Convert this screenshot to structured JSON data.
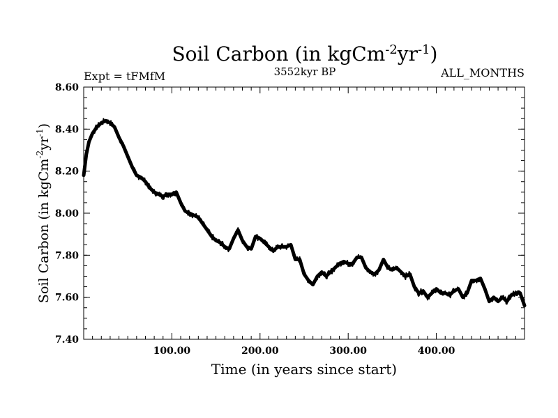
{
  "chart_data": {
    "type": "line",
    "title_main": "Soil Carbon (in kgCm",
    "title_sup1": "-2",
    "title_mid": "yr",
    "title_sup2": "-1",
    "title_end": ")",
    "left_label": "Expt = tFMfM",
    "center_label": "3552kyr BP",
    "right_label": "ALL_MONTHS",
    "xlabel": "Time (in years since start)",
    "ylabel_main": "Soil Carbon (in kgCm",
    "ylabel_sup1": "-2",
    "ylabel_mid": "yr",
    "ylabel_sup2": "-1",
    "ylabel_end": ")",
    "xlim": [
      0,
      500
    ],
    "ylim": [
      7.4,
      8.6
    ],
    "xticks": [
      100,
      200,
      300,
      400
    ],
    "xtick_labels": [
      "100.00",
      "200.00",
      "300.00",
      "400.00"
    ],
    "yticks": [
      7.4,
      7.6,
      7.8,
      8.0,
      8.2,
      8.4,
      8.6
    ],
    "ytick_labels": [
      "7.40",
      "7.60",
      "7.80",
      "8.00",
      "8.20",
      "8.40",
      "8.60"
    ],
    "grid": false,
    "series": [
      {
        "name": "Soil Carbon",
        "color": "#000000",
        "x": [
          0,
          3,
          6,
          10,
          15,
          20,
          25,
          30,
          35,
          40,
          45,
          50,
          55,
          60,
          65,
          70,
          75,
          80,
          85,
          90,
          95,
          100,
          105,
          110,
          115,
          120,
          125,
          130,
          135,
          140,
          145,
          150,
          155,
          160,
          165,
          170,
          175,
          180,
          185,
          190,
          195,
          200,
          205,
          210,
          215,
          220,
          225,
          230,
          235,
          240,
          245,
          250,
          255,
          260,
          265,
          270,
          275,
          280,
          285,
          290,
          295,
          300,
          305,
          310,
          315,
          320,
          325,
          330,
          335,
          340,
          345,
          350,
          355,
          360,
          365,
          370,
          375,
          380,
          385,
          390,
          395,
          400,
          405,
          410,
          415,
          420,
          425,
          430,
          435,
          440,
          445,
          450,
          455,
          460,
          465,
          470,
          475,
          480,
          485,
          490,
          495,
          500
        ],
        "values": [
          8.18,
          8.28,
          8.34,
          8.38,
          8.41,
          8.43,
          8.44,
          8.43,
          8.41,
          8.36,
          8.32,
          8.27,
          8.22,
          8.18,
          8.17,
          8.15,
          8.12,
          8.1,
          8.09,
          8.08,
          8.09,
          8.09,
          8.1,
          8.05,
          8.01,
          8.0,
          7.99,
          7.98,
          7.95,
          7.92,
          7.89,
          7.87,
          7.86,
          7.84,
          7.83,
          7.88,
          7.92,
          7.87,
          7.84,
          7.83,
          7.89,
          7.88,
          7.86,
          7.84,
          7.82,
          7.84,
          7.84,
          7.84,
          7.85,
          7.78,
          7.78,
          7.71,
          7.68,
          7.66,
          7.7,
          7.72,
          7.7,
          7.72,
          7.74,
          7.76,
          7.77,
          7.76,
          7.76,
          7.79,
          7.79,
          7.74,
          7.72,
          7.71,
          7.73,
          7.78,
          7.74,
          7.73,
          7.74,
          7.72,
          7.7,
          7.71,
          7.65,
          7.62,
          7.63,
          7.6,
          7.62,
          7.64,
          7.62,
          7.62,
          7.61,
          7.63,
          7.64,
          7.6,
          7.62,
          7.68,
          7.68,
          7.69,
          7.64,
          7.58,
          7.6,
          7.58,
          7.6,
          7.58,
          7.61,
          7.62,
          7.62,
          7.56
        ]
      }
    ]
  }
}
